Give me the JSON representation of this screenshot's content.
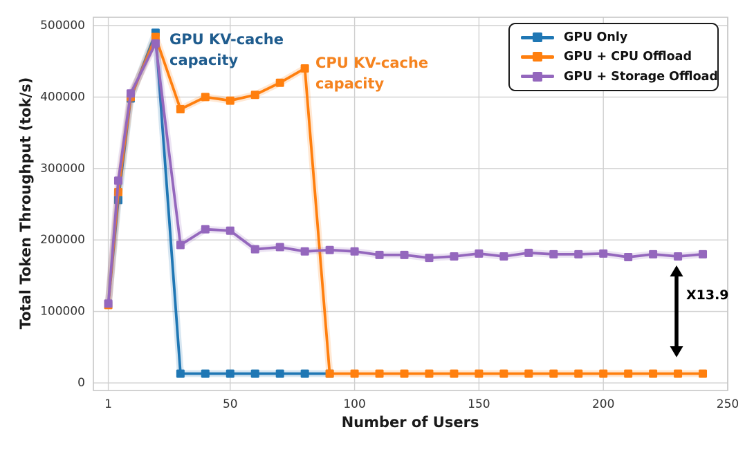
{
  "chart_data": {
    "type": "line",
    "title": "",
    "xlabel": "Number of Users",
    "ylabel": "Total Token Throughput (tok/s)",
    "xlim": [
      -5,
      250
    ],
    "ylim": [
      -10600,
      511600
    ],
    "xticks": [
      1,
      50,
      100,
      150,
      200,
      250
    ],
    "yticks": [
      0,
      100000,
      200000,
      300000,
      400000,
      500000
    ],
    "grid": true,
    "legend_position": "upper right",
    "marker": "square",
    "series": [
      {
        "name": "GPU Only",
        "color": "#1f77b4",
        "x": [
          1,
          5,
          10,
          20,
          30,
          40,
          50,
          60,
          70,
          80,
          90
        ],
        "y": [
          110000,
          256000,
          398000,
          490000,
          13000,
          13000,
          13000,
          13000,
          13000,
          13000,
          13000
        ]
      },
      {
        "name": "GPU + CPU Offload",
        "color": "#ff7f0e",
        "x": [
          1,
          5,
          10,
          20,
          30,
          40,
          50,
          60,
          70,
          80,
          90,
          100,
          110,
          120,
          130,
          140,
          150,
          160,
          170,
          180,
          190,
          200,
          210,
          220,
          230,
          240
        ],
        "y": [
          109000,
          267000,
          400000,
          484000,
          383000,
          400000,
          395000,
          403000,
          420000,
          440000,
          13000,
          13000,
          13000,
          13000,
          13000,
          13000,
          13000,
          13000,
          13000,
          13000,
          13000,
          13000,
          13000,
          13000,
          13000,
          13000
        ]
      },
      {
        "name": "GPU + Storage Offload",
        "color": "#9467bd",
        "x": [
          1,
          5,
          10,
          20,
          30,
          40,
          50,
          60,
          70,
          80,
          90,
          100,
          110,
          120,
          130,
          140,
          150,
          160,
          170,
          180,
          190,
          200,
          210,
          220,
          230,
          240
        ],
        "y": [
          111000,
          283000,
          405000,
          475000,
          193000,
          215000,
          213000,
          187000,
          190000,
          184000,
          186000,
          184000,
          179000,
          179000,
          175000,
          177000,
          181000,
          177000,
          182000,
          180000,
          180000,
          181000,
          176000,
          180000,
          177000,
          180000
        ]
      }
    ],
    "annotations": {
      "gpu_kv": {
        "line1": "GPU KV-cache",
        "line2": "capacity",
        "color": "#1f5c8e"
      },
      "cpu_kv": {
        "line1": "CPU KV-cache",
        "line2": "capacity",
        "color": "#f5831f"
      },
      "ratio": {
        "text": "X13.9",
        "color": "#000000"
      }
    }
  }
}
